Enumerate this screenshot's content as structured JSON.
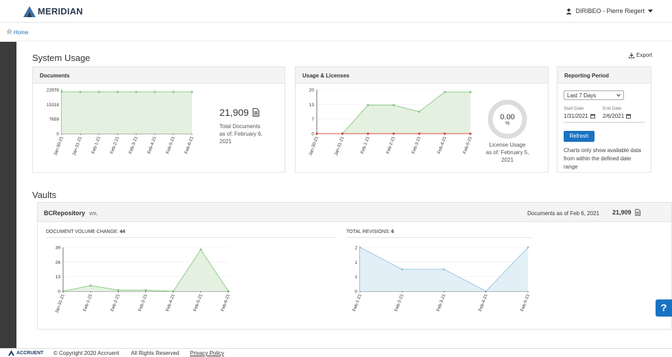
{
  "header": {
    "brand": "MERIDIAN",
    "user": "DIRIBEO - Pierre Riegert",
    "icons": {
      "logo": "meridian-logo-icon",
      "user": "user-icon",
      "caret": "caret-down-icon"
    }
  },
  "breadcrumb": {
    "home": "Home"
  },
  "system_usage": {
    "title": "System Usage",
    "export_label": "Export",
    "documents_panel": {
      "title": "Documents",
      "total": "21,909",
      "caption": [
        "Total Documents",
        "as of: February 6,",
        "2021"
      ]
    },
    "usage_panel": {
      "title": "Usage & Licenses",
      "gauge_value": "0.00",
      "gauge_unit": "%",
      "caption": [
        "License Usage",
        "as of: February 5,",
        "2021"
      ]
    },
    "reporting_panel": {
      "title": "Reporting Period",
      "selected": "Last 7 Days",
      "start_label": "Start Date",
      "end_label": "End Date",
      "start_date": "1/31/2021",
      "end_date": "2/6/2021",
      "refresh_label": "Refresh",
      "note": "Charts only show available data from within the defined date range"
    }
  },
  "vaults": {
    "title": "Vaults",
    "name": "BCRepository",
    "suffix": "vm.",
    "docs_label": "Documents as of Feb 6, 2021",
    "docs_count": "21,909",
    "volume_label": "DOCUMENT VOLUME CHANGE:",
    "volume_value": "44",
    "revisions_label": "TOTAL REVISIONS:",
    "revisions_value": "6"
  },
  "footer": {
    "brand": "ACCRUENT",
    "copyright": "© Copyright 2020 Accruent",
    "rights": "All Rights Reserved",
    "privacy": "Privacy Policy"
  },
  "help_label": "?",
  "colors": {
    "accent": "#1a73c2",
    "area_green": "#e4f1e0",
    "line_green": "#8cc98a",
    "area_blue": "#e3eff7",
    "line_blue": "#9cc7e2",
    "line_red": "#e04b3f"
  },
  "chart_data": [
    {
      "type": "area",
      "name": "documents",
      "categories": [
        "Jan-30-21",
        "Jan-31-21",
        "Feb-1-21",
        "Feb-2-21",
        "Feb-3-21",
        "Feb-4-21",
        "Feb-5-21",
        "Feb-6-21"
      ],
      "values": [
        21909,
        21909,
        21909,
        21909,
        21909,
        21909,
        21909,
        21909
      ],
      "yticks": [
        "22978",
        "15318",
        "7659",
        "0"
      ],
      "ylim": [
        0,
        22978
      ]
    },
    {
      "type": "area",
      "name": "usage-licenses",
      "categories": [
        "Jan-30-21",
        "Jan-31-21",
        "Feb-1-21",
        "Feb-2-21",
        "Feb-3-21",
        "Feb-4-21",
        "Feb-5-21"
      ],
      "series": [
        {
          "values": [
            0,
            0,
            13,
            13,
            10,
            19,
            19
          ],
          "color": "#8cc98a"
        },
        {
          "values": [
            0,
            0,
            0,
            0,
            0,
            0,
            0
          ],
          "color": "#e04b3f"
        }
      ],
      "yticks": [
        "20",
        "13",
        "7",
        "0"
      ],
      "ylim": [
        0,
        20
      ]
    },
    {
      "type": "area",
      "name": "document-volume-change",
      "categories": [
        "Jan-31-21",
        "Feb-1-21",
        "Feb-2-21",
        "Feb-3-21",
        "Feb-4-21",
        "Feb-5-21",
        "Feb-6-21"
      ],
      "values": [
        0,
        5,
        1,
        1,
        0,
        37,
        0
      ],
      "yticks": [
        "39",
        "26",
        "13",
        "0"
      ],
      "ylim": [
        0,
        39
      ]
    },
    {
      "type": "area",
      "name": "total-revisions",
      "categories": [
        "Feb-1-21",
        "Feb-2-21",
        "Feb-3-21",
        "Feb-4-21",
        "Feb-5-21"
      ],
      "values": [
        2,
        1,
        1,
        0,
        2
      ],
      "yticks": [
        "2",
        "1",
        "1",
        "0"
      ],
      "ylim": [
        0,
        2
      ]
    }
  ]
}
